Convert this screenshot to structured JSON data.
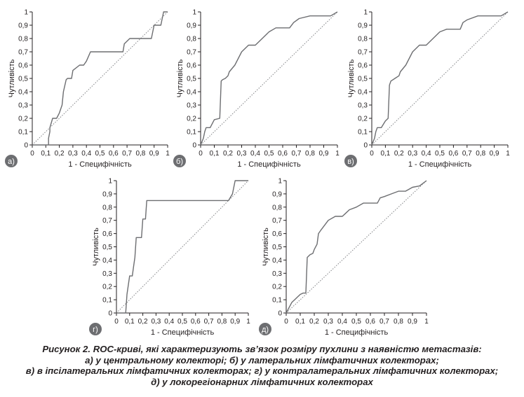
{
  "caption": {
    "line1": "Рисунок 2. ROC-криві, які характеризують зв’язок розміру пухлини з наявністю метастазів:",
    "line2": "а) у центральному колекторі; б) у латеральних лімфатичних колекторах;",
    "line3": "в) в іпсілатеральних лімфатичних колекторах; г) у контралатеральних лімфатичних колекторах;",
    "line4": "д) у локорегіонарних лімфатичних колекторах"
  },
  "colors": {
    "roc_line": "#6d6e71",
    "diagonal": "#808285",
    "axis": "#231f20",
    "badge": "#6d6e71"
  },
  "chart_data": [
    {
      "type": "line",
      "panel_label": "а)",
      "xlabel": "1 - Специфічність",
      "ylabel": "Чутливість",
      "xlim": [
        0,
        1
      ],
      "ylim": [
        0,
        1
      ],
      "x_ticks": [
        "0",
        "0,1",
        "0,2",
        "0,3",
        "0,4",
        "0,5",
        "0,6",
        "0,7",
        "0,8",
        "0,9",
        "1"
      ],
      "y_ticks": [
        "0",
        "0,1",
        "0,2",
        "0,3",
        "0,4",
        "0,5",
        "0,6",
        "0,7",
        "0,8",
        "0,9",
        "1"
      ],
      "reference_line": "diagonal dotted",
      "series": [
        {
          "x": [
            0,
            0.12,
            0.12,
            0.13,
            0.13,
            0.15,
            0.18,
            0.2,
            0.22,
            0.23,
            0.25,
            0.26,
            0.29,
            0.3,
            0.35,
            0.38,
            0.4,
            0.43,
            0.46,
            0.5,
            0.67,
            0.68,
            0.72,
            0.88,
            0.9,
            0.95,
            0.97,
            1
          ],
          "y": [
            0,
            0,
            0.05,
            0.1,
            0.13,
            0.2,
            0.2,
            0.24,
            0.3,
            0.4,
            0.49,
            0.5,
            0.5,
            0.56,
            0.6,
            0.6,
            0.63,
            0.7,
            0.7,
            0.7,
            0.7,
            0.76,
            0.8,
            0.8,
            0.9,
            0.9,
            1,
            1
          ]
        }
      ]
    },
    {
      "type": "line",
      "panel_label": "б)",
      "xlabel": "1 - Специфічність",
      "ylabel": "Чутливість",
      "xlim": [
        0,
        1
      ],
      "ylim": [
        0,
        1
      ],
      "x_ticks": [
        "0",
        "0,1",
        "0,2",
        "0,3",
        "0,4",
        "0,5",
        "0,6",
        "0,7",
        "0,8",
        "0,9",
        "1"
      ],
      "y_ticks": [
        "0",
        "0,1",
        "0,2",
        "0,3",
        "0,4",
        "0,5",
        "0,6",
        "0,7",
        "0,8",
        "0,9",
        "1"
      ],
      "reference_line": "diagonal dotted",
      "series": [
        {
          "x": [
            0,
            0.02,
            0.03,
            0.04,
            0.07,
            0.1,
            0.14,
            0.15,
            0.16,
            0.18,
            0.2,
            0.21,
            0.25,
            0.3,
            0.35,
            0.4,
            0.45,
            0.5,
            0.55,
            0.65,
            0.68,
            0.72,
            0.8,
            0.95,
            1
          ],
          "y": [
            0,
            0.05,
            0.1,
            0.13,
            0.13,
            0.19,
            0.2,
            0.48,
            0.49,
            0.5,
            0.52,
            0.55,
            0.6,
            0.7,
            0.75,
            0.75,
            0.8,
            0.85,
            0.88,
            0.88,
            0.92,
            0.95,
            0.97,
            0.97,
            1
          ]
        }
      ]
    },
    {
      "type": "line",
      "panel_label": "в)",
      "xlabel": "1 - Специфічність",
      "ylabel": "Чутливість",
      "xlim": [
        0,
        1
      ],
      "ylim": [
        0,
        1
      ],
      "x_ticks": [
        "0",
        "0,1",
        "0,2",
        "0,3",
        "0,4",
        "0,5",
        "0,6",
        "0,7",
        "0,8",
        "0,9",
        "1"
      ],
      "y_ticks": [
        "0",
        "0,1",
        "0,2",
        "0,3",
        "0,4",
        "0,5",
        "0,6",
        "0,7",
        "0,8",
        "0,9",
        "1"
      ],
      "reference_line": "diagonal dotted",
      "series": [
        {
          "x": [
            0,
            0.02,
            0.03,
            0.04,
            0.07,
            0.1,
            0.12,
            0.13,
            0.14,
            0.17,
            0.2,
            0.21,
            0.25,
            0.3,
            0.35,
            0.4,
            0.45,
            0.5,
            0.55,
            0.65,
            0.67,
            0.7,
            0.78,
            0.95,
            1
          ],
          "y": [
            0,
            0.05,
            0.1,
            0.13,
            0.13,
            0.18,
            0.2,
            0.45,
            0.48,
            0.5,
            0.52,
            0.55,
            0.6,
            0.7,
            0.75,
            0.75,
            0.8,
            0.85,
            0.87,
            0.87,
            0.92,
            0.94,
            0.97,
            0.97,
            1
          ]
        }
      ]
    },
    {
      "type": "line",
      "panel_label": "г)",
      "xlabel": "1 - Специфічність",
      "ylabel": "Чутливість",
      "xlim": [
        0,
        1
      ],
      "ylim": [
        0,
        1
      ],
      "x_ticks": [
        "0",
        "0,1",
        "0,2",
        "0,3",
        "0,4",
        "0,5",
        "0,6",
        "0,7",
        "0,8",
        "0,9",
        "1"
      ],
      "y_ticks": [
        "0",
        "0,1",
        "0,2",
        "0,3",
        "0,4",
        "0,5",
        "0,6",
        "0,7",
        "0,8",
        "0,9",
        "1"
      ],
      "reference_line": "diagonal dotted",
      "series": [
        {
          "x": [
            0,
            0.07,
            0.08,
            0.1,
            0.12,
            0.13,
            0.14,
            0.15,
            0.19,
            0.2,
            0.22,
            0.23,
            0.85,
            0.88,
            0.9,
            1
          ],
          "y": [
            0,
            0,
            0.14,
            0.28,
            0.28,
            0.35,
            0.42,
            0.57,
            0.57,
            0.71,
            0.71,
            0.85,
            0.85,
            0.9,
            1,
            1
          ]
        }
      ]
    },
    {
      "type": "line",
      "panel_label": "д)",
      "xlabel": "1 - Специфічність",
      "ylabel": "Чутливість",
      "xlim": [
        0,
        1
      ],
      "ylim": [
        0,
        1
      ],
      "x_ticks": [
        "0",
        "0,1",
        "0,2",
        "0,3",
        "0,4",
        "0,5",
        "0,6",
        "0,7",
        "0,8",
        "0,9",
        "1"
      ],
      "y_ticks": [
        "0",
        "0,1",
        "0,2",
        "0,3",
        "0,4",
        "0,5",
        "0,6",
        "0,7",
        "0,8",
        "0,9",
        "1"
      ],
      "reference_line": "diagonal dotted",
      "series": [
        {
          "x": [
            0,
            0.02,
            0.04,
            0.06,
            0.08,
            0.1,
            0.12,
            0.14,
            0.15,
            0.17,
            0.19,
            0.2,
            0.22,
            0.23,
            0.25,
            0.3,
            0.35,
            0.4,
            0.42,
            0.45,
            0.5,
            0.55,
            0.6,
            0.65,
            0.67,
            0.7,
            0.75,
            0.8,
            0.85,
            0.9,
            0.95,
            1
          ],
          "y": [
            0,
            0.04,
            0.08,
            0.1,
            0.12,
            0.14,
            0.15,
            0.15,
            0.42,
            0.44,
            0.45,
            0.48,
            0.52,
            0.6,
            0.63,
            0.7,
            0.73,
            0.73,
            0.75,
            0.78,
            0.8,
            0.83,
            0.83,
            0.83,
            0.87,
            0.88,
            0.9,
            0.92,
            0.92,
            0.95,
            0.96,
            1
          ]
        }
      ]
    }
  ]
}
